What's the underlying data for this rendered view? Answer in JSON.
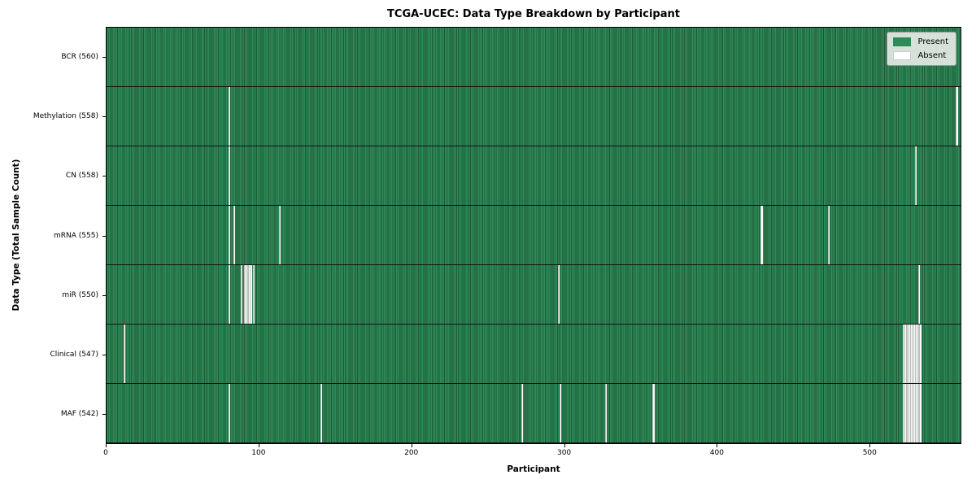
{
  "title": "TCGA-UCEC: Data Type Breakdown by Participant",
  "xlabel": "Participant",
  "ylabel": "Data Type (Total Sample Count)",
  "legend": {
    "present_label": "Present",
    "absent_label": "Absent"
  },
  "colors": {
    "present_fill": "#2e8b57",
    "present_edge": "#1d5a39",
    "absent_fill": "#ffffff",
    "row_separator": "#131313",
    "legend_background": "#e9ece9"
  },
  "chart_data": {
    "type": "heatmap",
    "title": "TCGA-UCEC: Data Type Breakdown by Participant",
    "xlabel": "Participant",
    "ylabel": "Data Type (Total Sample Count)",
    "legend_entries": [
      "Present",
      "Absent"
    ],
    "n_participants": 560,
    "x_ticks": [
      0,
      100,
      200,
      300,
      400,
      500
    ],
    "xlim": [
      0,
      560
    ],
    "rows": [
      {
        "label": "BCR (560)",
        "data_type": "BCR",
        "present_count": 560,
        "absent_count": 0,
        "absent_participants": []
      },
      {
        "label": "Methylation (558)",
        "data_type": "Methylation",
        "present_count": 558,
        "absent_count": 2,
        "absent_participants": [
          80,
          557
        ]
      },
      {
        "label": "CN (558)",
        "data_type": "CN",
        "present_count": 558,
        "absent_count": 2,
        "absent_participants": [
          80,
          530
        ]
      },
      {
        "label": "mRNA (555)",
        "data_type": "mRNA",
        "present_count": 555,
        "absent_count": 5,
        "absent_participants": [
          80,
          83,
          113,
          429,
          473
        ]
      },
      {
        "label": "miR (550)",
        "data_type": "miR",
        "present_count": 550,
        "absent_count": 10,
        "absent_participants": [
          80,
          88,
          90,
          91,
          92,
          93,
          94,
          96,
          296,
          532
        ]
      },
      {
        "label": "Clinical (547)",
        "data_type": "Clinical",
        "present_count": 547,
        "absent_count": 13,
        "absent_participants": [
          11,
          522,
          523,
          524,
          525,
          526,
          527,
          528,
          529,
          530,
          531,
          532,
          533
        ]
      },
      {
        "label": "MAF (542)",
        "data_type": "MAF",
        "present_count": 542,
        "absent_count": 18,
        "absent_participants": [
          80,
          140,
          272,
          297,
          327,
          358,
          522,
          523,
          524,
          525,
          526,
          527,
          528,
          529,
          530,
          531,
          532,
          533
        ]
      }
    ]
  }
}
